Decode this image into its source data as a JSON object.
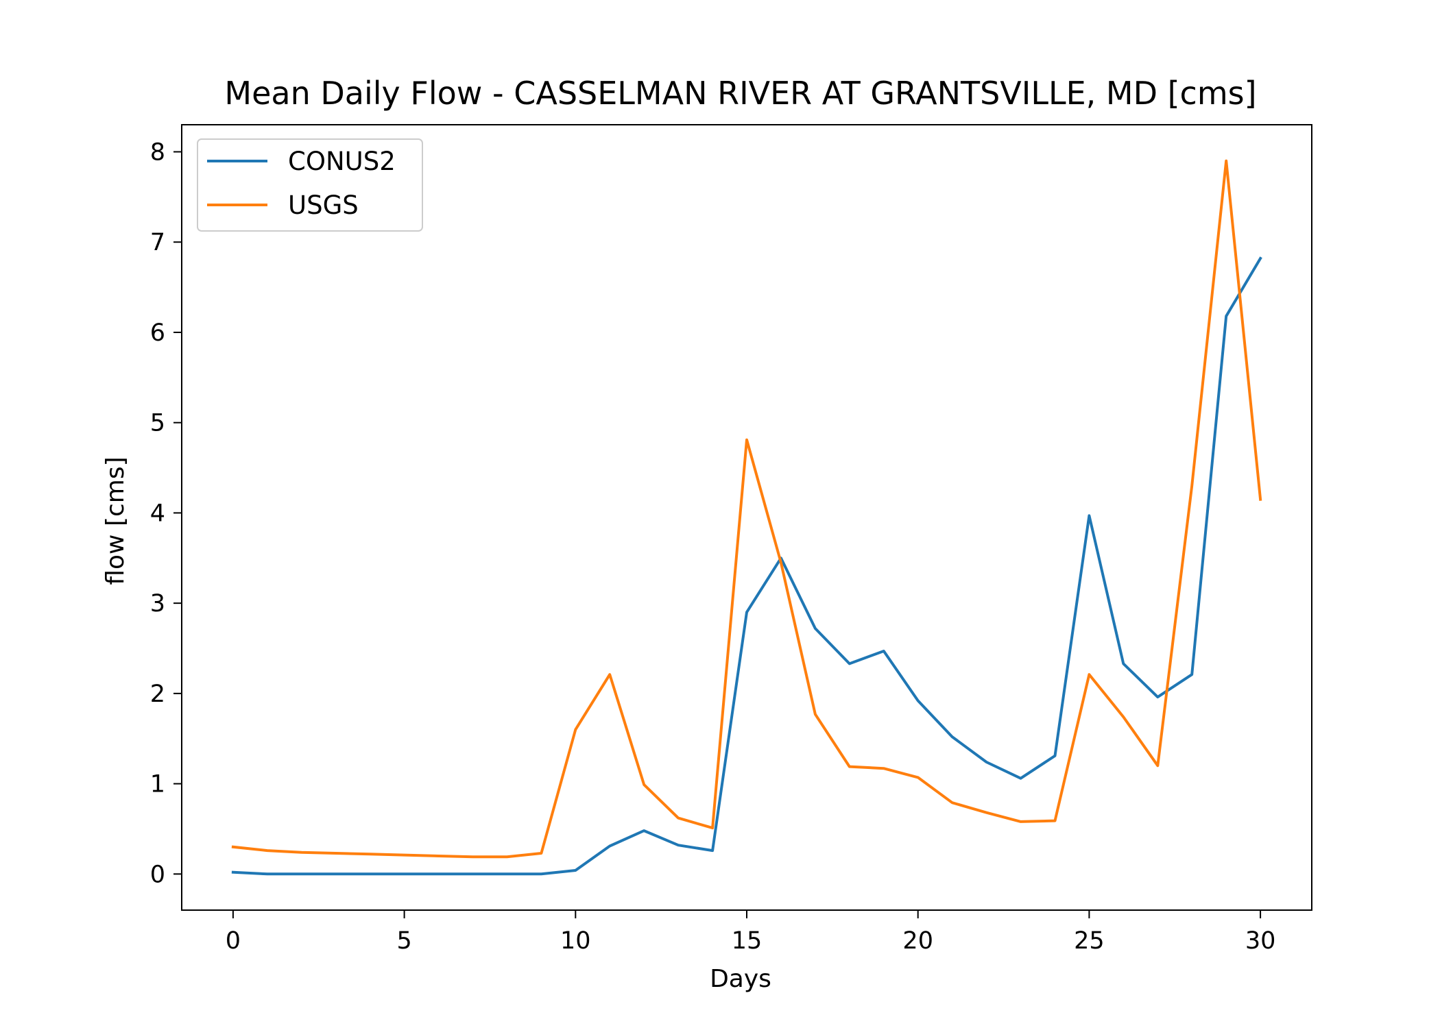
{
  "chart_data": {
    "type": "line",
    "title": "Mean Daily Flow - CASSELMAN RIVER AT GRANTSVILLE, MD [cms]",
    "xlabel": "Days",
    "ylabel": "flow [cms]",
    "xlim": [
      -1.5,
      31.5
    ],
    "ylim": [
      -0.4,
      8.3
    ],
    "xticks": [
      0,
      5,
      10,
      15,
      20,
      25,
      30
    ],
    "yticks": [
      0,
      1,
      2,
      3,
      4,
      5,
      6,
      7,
      8
    ],
    "grid": false,
    "legend_position": "upper-left",
    "x": [
      0,
      1,
      2,
      3,
      4,
      5,
      6,
      7,
      8,
      9,
      10,
      11,
      12,
      13,
      14,
      15,
      16,
      17,
      18,
      19,
      20,
      21,
      22,
      23,
      24,
      25,
      26,
      27,
      28,
      29,
      30
    ],
    "series": [
      {
        "name": "CONUS2",
        "color": "#1f77b4",
        "values": [
          0.02,
          0.0,
          0.0,
          0.0,
          0.0,
          0.0,
          0.0,
          0.0,
          0.0,
          0.0,
          0.04,
          0.31,
          0.48,
          0.32,
          0.26,
          2.9,
          3.5,
          2.72,
          2.33,
          2.47,
          1.92,
          1.52,
          1.24,
          1.06,
          1.31,
          3.97,
          2.33,
          1.96,
          2.21,
          6.18,
          6.82
        ]
      },
      {
        "name": "USGS",
        "color": "#ff7f0e",
        "values": [
          0.3,
          0.26,
          0.24,
          0.23,
          0.22,
          0.21,
          0.2,
          0.19,
          0.19,
          0.23,
          1.6,
          2.21,
          0.99,
          0.62,
          0.51,
          4.81,
          3.45,
          1.77,
          1.19,
          1.17,
          1.07,
          0.79,
          0.68,
          0.58,
          0.59,
          2.21,
          1.74,
          1.2,
          4.3,
          7.9,
          4.15
        ]
      }
    ]
  }
}
